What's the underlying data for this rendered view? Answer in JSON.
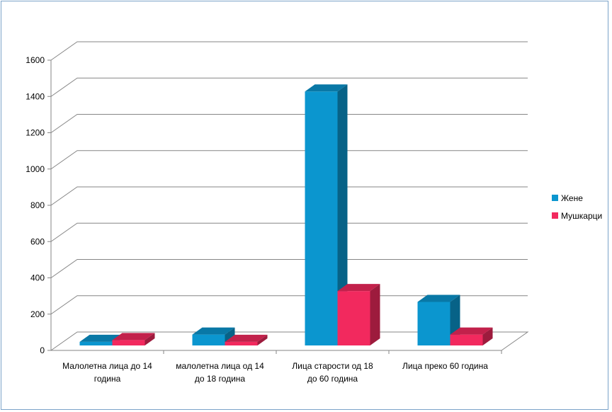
{
  "chart_data": {
    "type": "bar",
    "style": "3d-clustered-column",
    "categories": [
      [
        "Малолетна лица до 14",
        "година"
      ],
      [
        "малолетна лица од 14",
        "до 18 година"
      ],
      [
        "Лица старости од 18",
        "до 60 година"
      ],
      [
        "Лица преко 60 година"
      ]
    ],
    "series": [
      {
        "name": "Жене",
        "values": [
          20,
          60,
          1400,
          240
        ],
        "color": "#0b96cf"
      },
      {
        "name": "Мушкарци",
        "values": [
          30,
          20,
          300,
          60
        ],
        "color": "#f2295e"
      }
    ],
    "ylim": [
      0,
      1600
    ],
    "yticks": [
      "0",
      "200",
      "400",
      "600",
      "800",
      "1000",
      "1200",
      "1400",
      "1600"
    ],
    "grid": true,
    "legend_position": "right"
  }
}
